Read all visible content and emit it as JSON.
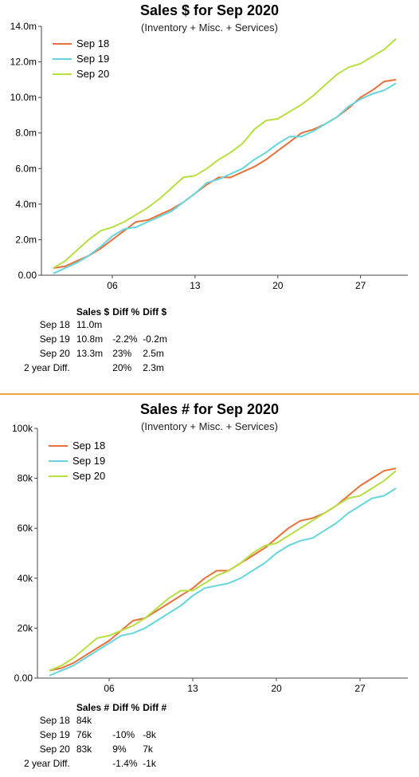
{
  "chart_data": [
    {
      "type": "line",
      "title": "Sales $ for Sep 2020",
      "subtitle": "(Inventory + Misc. + Services)",
      "x": [
        1,
        2,
        3,
        4,
        5,
        6,
        7,
        8,
        9,
        10,
        11,
        12,
        13,
        14,
        15,
        16,
        17,
        18,
        19,
        20,
        21,
        22,
        23,
        24,
        25,
        26,
        27,
        28,
        29,
        30
      ],
      "xticks": [
        6,
        13,
        20,
        27
      ],
      "xtick_labels": [
        "06",
        "13",
        "20",
        "27"
      ],
      "xlim": [
        0,
        31
      ],
      "ylim": [
        0,
        14
      ],
      "yticks": [
        0,
        2,
        4,
        6,
        8,
        10,
        12,
        14
      ],
      "ytick_labels": [
        "0.00",
        "2.0m",
        "4.0m",
        "6.0m",
        "8.0m",
        "10.0m",
        "12.0m",
        "14.0m"
      ],
      "legend": "top-left",
      "grid": false,
      "series": [
        {
          "name": "Sep 18",
          "color": "#e8703a",
          "values": [
            0.4,
            0.5,
            0.8,
            1.1,
            1.5,
            2.0,
            2.5,
            3.0,
            3.1,
            3.4,
            3.7,
            4.1,
            4.6,
            5.1,
            5.5,
            5.5,
            5.8,
            6.1,
            6.5,
            7.0,
            7.5,
            8.0,
            8.2,
            8.5,
            8.9,
            9.4,
            10.0,
            10.4,
            10.9,
            11.0
          ]
        },
        {
          "name": "Sep 19",
          "color": "#64d6dc",
          "values": [
            0.1,
            0.4,
            0.7,
            1.1,
            1.6,
            2.2,
            2.6,
            2.7,
            3.0,
            3.3,
            3.6,
            4.1,
            4.6,
            5.2,
            5.4,
            5.7,
            6.0,
            6.5,
            6.9,
            7.4,
            7.8,
            7.8,
            8.1,
            8.5,
            8.9,
            9.5,
            9.9,
            10.2,
            10.4,
            10.8
          ]
        },
        {
          "name": "Sep 20",
          "color": "#b6df42",
          "values": [
            0.4,
            0.8,
            1.4,
            2.0,
            2.5,
            2.7,
            3.0,
            3.4,
            3.8,
            4.3,
            4.9,
            5.5,
            5.6,
            6.0,
            6.5,
            6.9,
            7.4,
            8.2,
            8.7,
            8.8,
            9.2,
            9.6,
            10.1,
            10.7,
            11.3,
            11.7,
            11.9,
            12.3,
            12.7,
            13.3
          ]
        }
      ]
    },
    {
      "type": "line",
      "title": "Sales # for Sep 2020",
      "subtitle": "(Inventory + Misc. + Services)",
      "x": [
        1,
        2,
        3,
        4,
        5,
        6,
        7,
        8,
        9,
        10,
        11,
        12,
        13,
        14,
        15,
        16,
        17,
        18,
        19,
        20,
        21,
        22,
        23,
        24,
        25,
        26,
        27,
        28,
        29,
        30
      ],
      "xticks": [
        6,
        13,
        20,
        27
      ],
      "xtick_labels": [
        "06",
        "13",
        "20",
        "27"
      ],
      "xlim": [
        0,
        31
      ],
      "ylim": [
        0,
        100
      ],
      "yticks": [
        0,
        20,
        40,
        60,
        80,
        100
      ],
      "ytick_labels": [
        "0.00",
        "20k",
        "40k",
        "60k",
        "80k",
        "100k"
      ],
      "legend": "top-left",
      "grid": false,
      "series": [
        {
          "name": "Sep 18",
          "color": "#e8703a",
          "values": [
            3,
            4,
            6,
            9,
            12,
            15,
            19,
            23,
            24,
            27,
            30,
            33,
            36,
            40,
            43,
            43,
            46,
            49,
            52,
            56,
            60,
            63,
            64,
            66,
            69,
            73,
            77,
            80,
            83,
            84
          ]
        },
        {
          "name": "Sep 19",
          "color": "#64d6dc",
          "values": [
            1,
            3,
            5,
            8,
            11,
            14,
            17,
            18,
            20,
            23,
            26,
            29,
            33,
            36,
            37,
            38,
            40,
            43,
            46,
            50,
            53,
            55,
            56,
            59,
            62,
            66,
            69,
            72,
            73,
            76
          ]
        },
        {
          "name": "Sep 20",
          "color": "#b6df42",
          "values": [
            3,
            5,
            8,
            12,
            16,
            17,
            19,
            21,
            24,
            28,
            32,
            35,
            35,
            38,
            41,
            43,
            46,
            50,
            53,
            54,
            57,
            60,
            63,
            66,
            69,
            72,
            73,
            76,
            79,
            83
          ]
        }
      ]
    }
  ],
  "summaries": [
    {
      "headers": [
        "Sales $",
        "Diff %",
        "Diff $"
      ],
      "rows": [
        {
          "label": "Sep 18",
          "value": "11.0m",
          "diff_pct": "",
          "diff_abs": ""
        },
        {
          "label": "Sep 19",
          "value": "10.8m",
          "diff_pct": "-2.2%",
          "diff_abs": "-0.2m"
        },
        {
          "label": "Sep 20",
          "value": "13.3m",
          "diff_pct": "23%",
          "diff_abs": "2.5m"
        },
        {
          "label": "2 year Diff.",
          "value": "",
          "diff_pct": "20%",
          "diff_abs": "2.3m"
        }
      ]
    },
    {
      "headers": [
        "Sales #",
        "Diff %",
        "Diff #"
      ],
      "rows": [
        {
          "label": "Sep 18",
          "value": "84k",
          "diff_pct": "",
          "diff_abs": ""
        },
        {
          "label": "Sep 19",
          "value": "76k",
          "diff_pct": "-10%",
          "diff_abs": "-8k"
        },
        {
          "label": "Sep 20",
          "value": "83k",
          "diff_pct": "9%",
          "diff_abs": "7k"
        },
        {
          "label": "2 year Diff.",
          "value": "",
          "diff_pct": "-1.4%",
          "diff_abs": "-1k"
        }
      ]
    }
  ]
}
